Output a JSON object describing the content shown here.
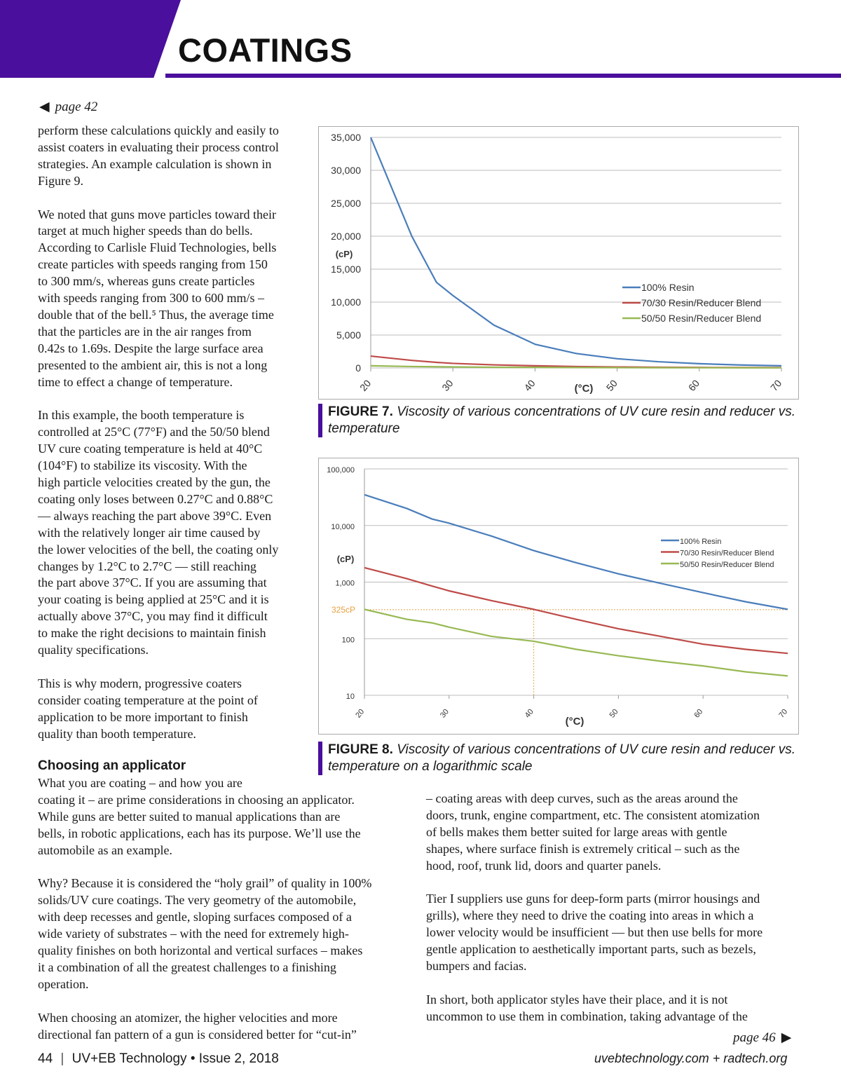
{
  "header": {
    "title": "COATINGS"
  },
  "jump_prev": {
    "arrow": "◀",
    "label": "page 42"
  },
  "jump_next": {
    "arrow": "▶",
    "label": "page 46"
  },
  "left_col": [
    [
      "perform these calculations quickly and easily to",
      "assist coaters in evaluating their process control",
      "strategies. An example calculation is shown in",
      "Figure 9."
    ],
    [
      "We noted that guns move particles toward their",
      "target at much higher speeds than do bells.",
      "According to Carlisle Fluid Technologies, bells",
      "create particles with speeds ranging from 150",
      "to 300 mm/s, whereas guns create particles",
      "with speeds ranging from 300 to 600 mm/s –",
      "double that of the bell.⁵ Thus, the average time",
      "that the particles are in the air ranges from",
      "0.42s to 1.69s. Despite the large surface area",
      "presented to the ambient air, this is not a long",
      "time to effect a change of temperature."
    ],
    [
      "In this example, the booth temperature is",
      "controlled at 25°C (77°F) and the 50/50 blend",
      "UV cure coating temperature is held at 40°C",
      "(104°F) to stabilize its viscosity. With the",
      "high particle velocities created by the gun, the",
      "coating only loses between 0.27°C and 0.88°C",
      "— always reaching the part above 39°C. Even",
      "with the relatively longer air time caused by",
      "the lower velocities of the bell, the coating only",
      "changes by 1.2°C to 2.7°C — still reaching",
      "the part above 37°C. If you are assuming that",
      "your coating is being applied at 25°C and it is",
      "actually above 37°C, you may find it difficult",
      "to make the right decisions to maintain finish",
      "quality specifications."
    ],
    [
      "This is why modern, progressive coaters",
      "consider coating temperature at the point of",
      "application to be more important to finish",
      "quality than booth temperature."
    ]
  ],
  "section": {
    "heading": "Choosing an applicator"
  },
  "lower_left": [
    [
      "What you are coating – and how you are",
      "coating it – are prime considerations in choosing an applicator.",
      "While guns are better suited to manual applications than are",
      "bells, in robotic applications, each has its purpose. We’ll use the",
      "automobile as an example."
    ],
    [
      "Why? Because it is considered the “holy grail” of quality in 100%",
      "solids/UV cure coatings. The very geometry of the automobile,",
      "with deep recesses and gentle, sloping surfaces composed of a",
      "wide variety of substrates – with the need for extremely high-",
      "quality finishes on both horizontal and vertical surfaces – makes",
      "it a combination of all the greatest challenges to a finishing",
      "operation."
    ],
    [
      "When choosing an atomizer, the higher velocities and more",
      "directional fan pattern of a gun is considered better for “cut-in”"
    ]
  ],
  "right_col": [
    [
      "– coating areas with deep curves, such as the areas around the",
      "doors, trunk, engine compartment, etc. The consistent atomization",
      "of bells makes them better suited for large areas with gentle",
      "shapes, where surface finish is extremely critical – such as the",
      "hood, roof, trunk lid, doors and quarter panels."
    ],
    [
      "Tier I suppliers use guns for deep-form parts (mirror housings and",
      "grills), where they need to drive the coating into areas in which a",
      "lower velocity would be insufficient — but then use bells for more",
      "gentle application to aesthetically important parts, such as bezels,",
      "bumpers and facias."
    ],
    [
      "In short, both applicator styles have their place, and it is not",
      "uncommon to use them in combination, taking advantage of the"
    ]
  ],
  "figure7": {
    "label": "FIGURE 7.",
    "text": "Viscosity of various concentrations of UV cure resin and reducer vs. temperature"
  },
  "figure8": {
    "label": "FIGURE 8.",
    "text": "Viscosity of various concentrations of UV cure resin and reducer vs. temperature on a logarithmic scale"
  },
  "footer": {
    "page": "44",
    "sep": "|",
    "pub": "UV+EB Technology • Issue 2, 2018",
    "sites": "uvebtechnology.com  +  radtech.org"
  },
  "chart_data": [
    {
      "type": "line",
      "title": "",
      "xlabel": "(°C)",
      "ylabel": "(cP)",
      "xlim": [
        20,
        70
      ],
      "ylim": [
        0,
        35000
      ],
      "grid": true,
      "legend": "right",
      "yscale": "linear",
      "xticks": [
        "20",
        "30",
        "40",
        "50",
        "60",
        "70"
      ],
      "yticks": [
        "0",
        "5,000",
        "10,000",
        "15,000",
        "20,000",
        "25,000",
        "30,000",
        "35,000"
      ],
      "x": [
        20,
        25,
        28,
        30,
        35,
        40,
        45,
        50,
        55,
        60,
        65,
        70
      ],
      "series": [
        {
          "name": "100% Resin",
          "color": "#4a7ebb",
          "values": [
            35000,
            20000,
            13000,
            11000,
            6500,
            3600,
            2200,
            1400,
            950,
            650,
            450,
            330
          ]
        },
        {
          "name": "70/30 Resin/Reducer Blend",
          "color": "#be4b48",
          "values": [
            1800,
            1150,
            850,
            700,
            470,
            330,
            220,
            150,
            110,
            80,
            65,
            55
          ]
        },
        {
          "name": "50/50 Resin/Reducer Blend",
          "color": "#98b954",
          "values": [
            330,
            220,
            190,
            160,
            110,
            90,
            65,
            50,
            40,
            33,
            26,
            22
          ]
        }
      ]
    },
    {
      "type": "line",
      "title": "",
      "xlabel": "(°C)",
      "ylabel": "(cP)",
      "xlim": [
        20,
        70
      ],
      "ylim": [
        10,
        100000
      ],
      "grid": true,
      "legend": "right",
      "yscale": "log",
      "xticks": [
        "20",
        "30",
        "40",
        "50",
        "60",
        "70"
      ],
      "yticks": [
        "10",
        "100",
        "1,000",
        "10,000",
        "100,000"
      ],
      "annotation": {
        "label": "325cP",
        "value": 325,
        "x": 40,
        "color": "#e8a040"
      },
      "x": [
        20,
        25,
        28,
        30,
        35,
        40,
        45,
        50,
        55,
        60,
        65,
        70
      ],
      "series": [
        {
          "name": "100% Resin",
          "color": "#4a7ebb",
          "values": [
            35000,
            20000,
            13000,
            11000,
            6500,
            3600,
            2200,
            1400,
            950,
            650,
            450,
            330
          ]
        },
        {
          "name": "70/30 Resin/Reducer Blend",
          "color": "#be4b48",
          "values": [
            1800,
            1150,
            850,
            700,
            470,
            330,
            220,
            150,
            110,
            80,
            65,
            55
          ]
        },
        {
          "name": "50/50 Resin/Reducer Blend",
          "color": "#98b954",
          "values": [
            330,
            220,
            190,
            160,
            110,
            90,
            65,
            50,
            40,
            33,
            26,
            22
          ]
        }
      ]
    }
  ]
}
